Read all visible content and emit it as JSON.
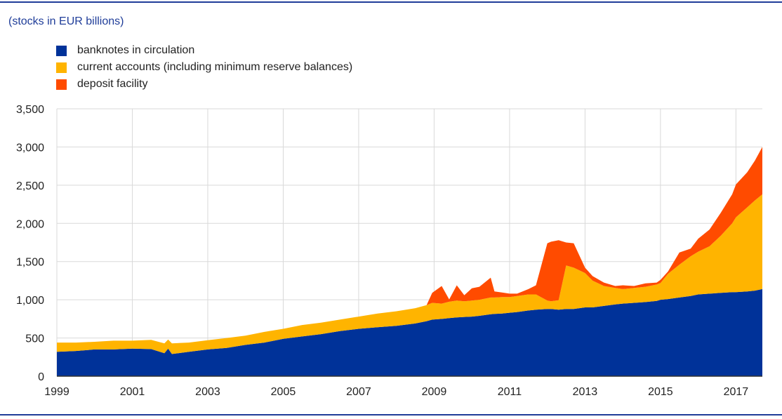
{
  "chart_data": {
    "type": "area",
    "stacked": true,
    "subtitle": "(stocks in EUR billions)",
    "xlim": [
      1999.0,
      2017.7
    ],
    "ylim": [
      0,
      3500
    ],
    "x_ticks": [
      "1999",
      "2001",
      "2003",
      "2005",
      "2007",
      "2009",
      "2011",
      "2013",
      "2015",
      "2017"
    ],
    "y_ticks": [
      "0",
      "500",
      "1,000",
      "1,500",
      "2,000",
      "2,500",
      "3,000",
      "3,500"
    ],
    "grid": true,
    "legend_position": "top-left",
    "colors": {
      "banknotes": "#003299",
      "current_accounts": "#ffb400",
      "deposit_facility": "#ff4b00",
      "axis_rule": "#1f3d99"
    },
    "x": [
      1999.0,
      1999.5,
      2000.0,
      2000.5,
      2001.0,
      2001.5,
      2001.85,
      2001.95,
      2002.05,
      2002.5,
      2003.0,
      2003.5,
      2004.0,
      2004.5,
      2005.0,
      2005.5,
      2006.0,
      2006.5,
      2007.0,
      2007.5,
      2008.0,
      2008.5,
      2008.8,
      2008.95,
      2009.2,
      2009.4,
      2009.6,
      2009.8,
      2010.0,
      2010.2,
      2010.5,
      2010.6,
      2010.8,
      2011.0,
      2011.2,
      2011.5,
      2011.7,
      2012.0,
      2012.1,
      2012.3,
      2012.5,
      2012.7,
      2013.0,
      2013.2,
      2013.5,
      2013.8,
      2014.0,
      2014.3,
      2014.6,
      2014.9,
      2015.0,
      2015.2,
      2015.5,
      2015.8,
      2016.0,
      2016.3,
      2016.6,
      2016.9,
      2017.0,
      2017.3,
      2017.5,
      2017.7
    ],
    "series": [
      {
        "name": "banknotes in circulation",
        "values": [
          320,
          330,
          350,
          350,
          360,
          355,
          300,
          360,
          290,
          320,
          350,
          370,
          410,
          440,
          490,
          520,
          550,
          590,
          620,
          640,
          660,
          690,
          720,
          740,
          750,
          760,
          770,
          775,
          780,
          790,
          810,
          815,
          820,
          830,
          840,
          860,
          870,
          880,
          880,
          870,
          880,
          880,
          900,
          900,
          920,
          940,
          950,
          960,
          970,
          985,
          1000,
          1010,
          1030,
          1050,
          1070,
          1080,
          1090,
          1100,
          1100,
          1110,
          1120,
          1140
        ]
      },
      {
        "name": "current accounts (including minimum reserve balances)",
        "values": [
          120,
          110,
          100,
          115,
          105,
          120,
          130,
          120,
          140,
          120,
          120,
          130,
          120,
          140,
          130,
          150,
          150,
          150,
          160,
          180,
          190,
          200,
          210,
          220,
          200,
          215,
          220,
          205,
          210,
          210,
          220,
          215,
          215,
          205,
          210,
          210,
          200,
          110,
          100,
          125,
          570,
          540,
          450,
          350,
          260,
          215,
          190,
          195,
          200,
          215,
          220,
          330,
          430,
          520,
          560,
          620,
          750,
          900,
          980,
          1100,
          1180,
          1240
        ]
      },
      {
        "name": "deposit facility",
        "values": [
          0,
          0,
          0,
          0,
          0,
          0,
          0,
          0,
          0,
          0,
          0,
          0,
          0,
          0,
          0,
          0,
          0,
          0,
          0,
          0,
          0,
          0,
          0,
          130,
          230,
          30,
          200,
          80,
          160,
          170,
          260,
          80,
          60,
          45,
          30,
          70,
          120,
          750,
          780,
          785,
          300,
          320,
          70,
          60,
          45,
          25,
          50,
          25,
          45,
          25,
          40,
          30,
          160,
          100,
          170,
          220,
          300,
          380,
          430,
          460,
          520,
          620
        ]
      }
    ]
  }
}
